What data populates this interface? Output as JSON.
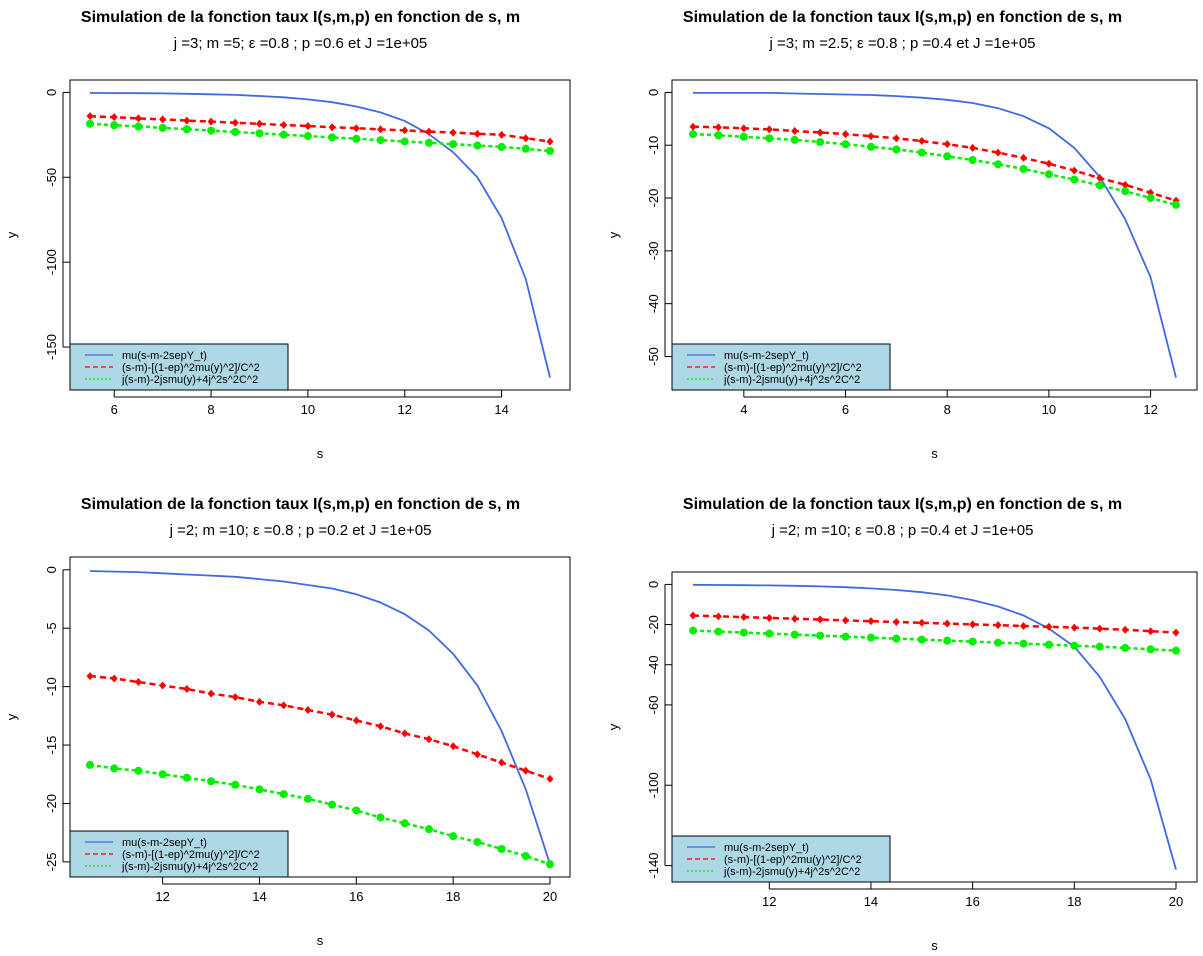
{
  "chart_data": [
    {
      "type": "line",
      "title": "Simulation de la fonction taux I(s,m,p) en fonction de s, m",
      "subtitle": "j =3; m =5; ε =0.8 ; p =0.6 et J =1e+05",
      "xlabel": "s",
      "ylabel": "y",
      "xlim": [
        5.5,
        15
      ],
      "ylim": [
        -168,
        0
      ],
      "xticks": [
        6,
        8,
        10,
        12,
        14
      ],
      "yticks": [
        0,
        -50,
        -100,
        -150
      ],
      "grid": false,
      "legend_position": "bottom-left",
      "x": [
        5.5,
        6,
        6.5,
        7,
        7.5,
        8,
        8.5,
        9,
        9.5,
        10,
        10.5,
        11,
        11.5,
        12,
        12.5,
        13,
        13.5,
        14,
        14.5,
        15
      ],
      "series": [
        {
          "name": "mu(s-m-2sepY_t)",
          "color": "#4169E1",
          "style": "solid",
          "markers": false,
          "values": [
            -0.3,
            -0.4,
            -0.5,
            -0.6,
            -0.8,
            -1.1,
            -1.5,
            -2.1,
            -2.9,
            -4.1,
            -5.8,
            -8.3,
            -11.8,
            -16.8,
            -24.6,
            -35.3,
            -50,
            -74,
            -110,
            -168
          ]
        },
        {
          "name": "(s-m)-[(1-ep)^2mu(y)^2]/C^2",
          "color": "#FF0000",
          "style": "dashed",
          "markers": "diamond",
          "values": [
            -14,
            -14.6,
            -15.3,
            -15.9,
            -16.6,
            -17.2,
            -17.9,
            -18.5,
            -19.2,
            -19.8,
            -20.5,
            -21.1,
            -21.8,
            -22.4,
            -23.1,
            -23.7,
            -24.4,
            -25,
            -27,
            -29
          ]
        },
        {
          "name": "j(s-m)-2jsmu(y)+4j^2s^2C^2",
          "color": "#00EE00",
          "style": "dotted",
          "markers": "circle",
          "values": [
            -18.5,
            -19.3,
            -20.1,
            -20.9,
            -21.7,
            -22.5,
            -23.3,
            -24.1,
            -24.9,
            -25.7,
            -26.5,
            -27.3,
            -28.1,
            -28.9,
            -29.7,
            -30.5,
            -31.3,
            -32.1,
            -33.2,
            -34.5
          ]
        }
      ]
    },
    {
      "type": "line",
      "title": "Simulation de la fonction taux I(s,m,p) en fonction de s, m",
      "subtitle": "j =3; m =2.5; ε =0.8 ; p =0.4 et J =1e+05",
      "xlabel": "s",
      "ylabel": "y",
      "xlim": [
        3,
        12.5
      ],
      "ylim": [
        -54,
        0
      ],
      "xticks": [
        4,
        6,
        8,
        10,
        12
      ],
      "yticks": [
        0,
        -10,
        -20,
        -30,
        -40,
        -50
      ],
      "grid": false,
      "legend_position": "bottom-left",
      "x": [
        3,
        3.5,
        4,
        4.5,
        5,
        5.5,
        6,
        6.5,
        7,
        7.5,
        8,
        8.5,
        9,
        9.5,
        10,
        10.5,
        11,
        11.5,
        12,
        12.5
      ],
      "series": [
        {
          "name": "mu(s-m-2sepY_t)",
          "color": "#4169E1",
          "style": "solid",
          "markers": false,
          "values": [
            -0.1,
            -0.1,
            -0.1,
            -0.1,
            -0.2,
            -0.3,
            -0.4,
            -0.5,
            -0.7,
            -1.0,
            -1.4,
            -2.0,
            -3.0,
            -4.5,
            -6.8,
            -10.5,
            -16.0,
            -24.0,
            -35.0,
            -54.0
          ]
        },
        {
          "name": "(s-m)-[(1-ep)^2mu(y)^2]/C^2",
          "color": "#FF0000",
          "style": "dashed",
          "markers": "diamond",
          "values": [
            -6.5,
            -6.6,
            -6.8,
            -7.0,
            -7.3,
            -7.6,
            -7.9,
            -8.3,
            -8.7,
            -9.2,
            -9.8,
            -10.5,
            -11.4,
            -12.4,
            -13.5,
            -14.8,
            -16.2,
            -17.5,
            -19.0,
            -20.5
          ]
        },
        {
          "name": "j(s-m)-2jsmu(y)+4j^2s^2C^2",
          "color": "#00EE00",
          "style": "dotted",
          "markers": "circle",
          "values": [
            -7.9,
            -8.1,
            -8.4,
            -8.7,
            -9.0,
            -9.4,
            -9.8,
            -10.3,
            -10.8,
            -11.4,
            -12.1,
            -12.8,
            -13.6,
            -14.5,
            -15.5,
            -16.5,
            -17.6,
            -18.7,
            -20.0,
            -21.3
          ]
        }
      ]
    },
    {
      "type": "line",
      "title": "Simulation de la fonction taux I(s,m,p) en fonction de s, m",
      "subtitle": "j =2; m =10; ε =0.8 ; p =0.2 et J =1e+05",
      "xlabel": "s",
      "ylabel": "y",
      "xlim": [
        10.5,
        20
      ],
      "ylim": [
        -25.2,
        0
      ],
      "xticks": [
        12,
        14,
        16,
        18,
        20
      ],
      "yticks": [
        0,
        -5,
        -10,
        -15,
        -20,
        -25
      ],
      "grid": false,
      "legend_position": "bottom-left",
      "x": [
        10.5,
        11,
        11.5,
        12,
        12.5,
        13,
        13.5,
        14,
        14.5,
        15,
        15.5,
        16,
        16.5,
        17,
        17.5,
        18,
        18.5,
        19,
        19.5,
        20
      ],
      "series": [
        {
          "name": "mu(s-m-2sepY_t)",
          "color": "#4169E1",
          "style": "solid",
          "markers": false,
          "values": [
            -0.1,
            -0.15,
            -0.2,
            -0.3,
            -0.4,
            -0.5,
            -0.6,
            -0.8,
            -1.0,
            -1.3,
            -1.6,
            -2.1,
            -2.8,
            -3.8,
            -5.2,
            -7.2,
            -9.9,
            -13.8,
            -18.8,
            -25.2
          ]
        },
        {
          "name": "(s-m)-[(1-ep)^2mu(y)^2]/C^2",
          "color": "#FF0000",
          "style": "dashed",
          "markers": "diamond",
          "values": [
            -9.1,
            -9.3,
            -9.6,
            -9.9,
            -10.2,
            -10.6,
            -10.9,
            -11.3,
            -11.6,
            -12.0,
            -12.4,
            -12.9,
            -13.4,
            -14.0,
            -14.5,
            -15.1,
            -15.8,
            -16.5,
            -17.2,
            -17.9
          ]
        },
        {
          "name": "j(s-m)-2jsmu(y)+4j^2s^2C^2",
          "color": "#00EE00",
          "style": "dotted",
          "markers": "circle",
          "values": [
            -16.7,
            -17.0,
            -17.2,
            -17.5,
            -17.8,
            -18.1,
            -18.4,
            -18.8,
            -19.2,
            -19.6,
            -20.1,
            -20.6,
            -21.2,
            -21.7,
            -22.2,
            -22.8,
            -23.3,
            -23.9,
            -24.5,
            -25.2
          ]
        }
      ]
    },
    {
      "type": "line",
      "title": "Simulation de la fonction taux I(s,m,p) en fonction de s, m",
      "subtitle": "j =2; m =10; ε =0.8 ; p =0.4 et J =1e+05",
      "xlabel": "s",
      "ylabel": "y",
      "xlim": [
        10.5,
        20
      ],
      "ylim": [
        -142,
        0
      ],
      "xticks": [
        12,
        14,
        16,
        18,
        20
      ],
      "yticks": [
        0,
        -20,
        -40,
        -60,
        -100,
        -140
      ],
      "grid": false,
      "legend_position": "bottom-left",
      "x": [
        10.5,
        11,
        11.5,
        12,
        12.5,
        13,
        13.5,
        14,
        14.5,
        15,
        15.5,
        16,
        16.5,
        17,
        17.5,
        18,
        18.5,
        19,
        19.5,
        20
      ],
      "series": [
        {
          "name": "mu(s-m-2sepY_t)",
          "color": "#4169E1",
          "style": "solid",
          "markers": false,
          "values": [
            -0.2,
            -0.3,
            -0.4,
            -0.5,
            -0.7,
            -1.0,
            -1.4,
            -2.0,
            -2.8,
            -3.9,
            -5.5,
            -7.8,
            -11,
            -15.5,
            -22,
            -31,
            -46,
            -67,
            -97,
            -142
          ]
        },
        {
          "name": "(s-m)-[(1-ep)^2mu(y)^2]/C^2",
          "color": "#FF0000",
          "style": "dashed",
          "markers": "diamond",
          "values": [
            -15.5,
            -15.9,
            -16.3,
            -16.7,
            -17.1,
            -17.5,
            -17.9,
            -18.3,
            -18.7,
            -19.1,
            -19.5,
            -19.9,
            -20.3,
            -20.7,
            -21.1,
            -21.5,
            -22.0,
            -22.6,
            -23.3,
            -24.0
          ]
        },
        {
          "name": "j(s-m)-2jsmu(y)+4j^2s^2C^2",
          "color": "#00EE00",
          "style": "dotted",
          "markers": "circle",
          "values": [
            -23.0,
            -23.5,
            -24.0,
            -24.5,
            -25.0,
            -25.5,
            -26.0,
            -26.5,
            -27.0,
            -27.5,
            -28.0,
            -28.5,
            -29.0,
            -29.5,
            -30.0,
            -30.5,
            -31.0,
            -31.6,
            -32.3,
            -33.0
          ]
        }
      ]
    }
  ]
}
